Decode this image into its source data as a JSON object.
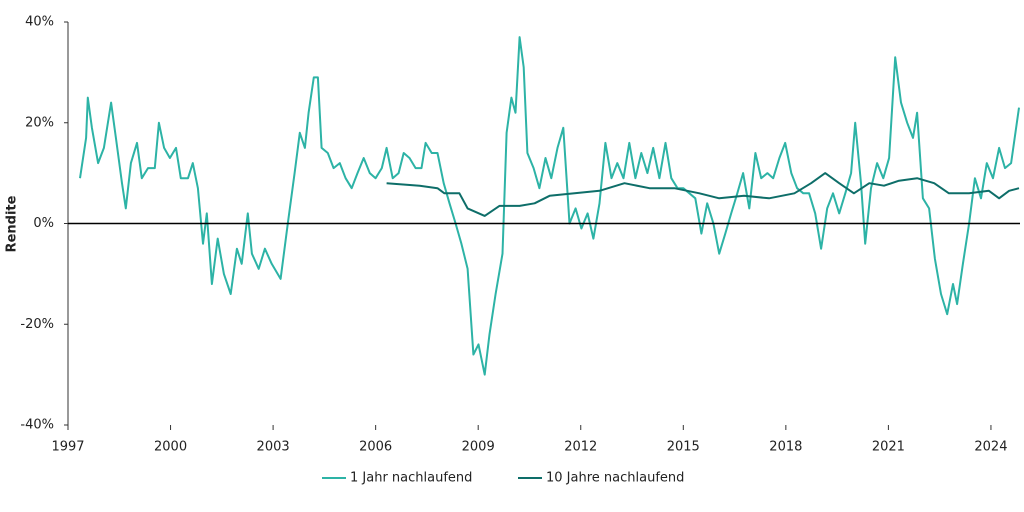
{
  "chart_data": {
    "type": "line",
    "y_label": "Rendite",
    "xlim": [
      1997,
      2024.85
    ],
    "xticks": [
      1997,
      2000,
      2003,
      2006,
      2009,
      2012,
      2015,
      2018,
      2021,
      2024
    ],
    "ylim": [
      -40,
      40
    ],
    "yticks": [
      {
        "value": 40,
        "label": "40%"
      },
      {
        "value": 20,
        "label": "20%"
      },
      {
        "value": 0,
        "label": "0%"
      },
      {
        "value": -20,
        "label": "-20%"
      },
      {
        "value": -40,
        "label": "-40%"
      }
    ],
    "legend": "bottom",
    "series": [
      {
        "name": "1 Jahr nachlaufend",
        "color": "#2db3a6",
        "x": [
          1997.35,
          1997.53,
          1997.58,
          1997.7,
          1997.88,
          1998.05,
          1998.26,
          1998.4,
          1998.58,
          1998.69,
          1998.84,
          1999.02,
          1999.16,
          1999.34,
          1999.54,
          1999.66,
          1999.81,
          1999.98,
          2000.16,
          2000.3,
          2000.51,
          2000.65,
          2000.8,
          2000.95,
          2001.06,
          2001.21,
          2001.38,
          2001.56,
          2001.76,
          2001.94,
          2002.08,
          2002.26,
          2002.38,
          2002.58,
          2002.76,
          2002.96,
          2003.22,
          2003.43,
          2003.63,
          2003.78,
          2003.93,
          2004.04,
          2004.19,
          2004.31,
          2004.42,
          2004.6,
          2004.77,
          2004.95,
          2005.12,
          2005.3,
          2005.47,
          2005.65,
          2005.83,
          2006.0,
          2006.18,
          2006.32,
          2006.5,
          2006.67,
          2006.82,
          2006.99,
          2007.17,
          2007.34,
          2007.46,
          2007.64,
          2007.81,
          2007.99,
          2008.16,
          2008.34,
          2008.51,
          2008.69,
          2008.86,
          2009.01,
          2009.19,
          2009.33,
          2009.51,
          2009.71,
          2009.83,
          2009.97,
          2010.09,
          2010.21,
          2010.33,
          2010.44,
          2010.62,
          2010.79,
          2010.97,
          2011.14,
          2011.32,
          2011.49,
          2011.67,
          2011.85,
          2012.02,
          2012.2,
          2012.37,
          2012.55,
          2012.72,
          2012.9,
          2013.07,
          2013.25,
          2013.42,
          2013.6,
          2013.77,
          2013.95,
          2014.12,
          2014.3,
          2014.48,
          2014.65,
          2014.83,
          2015.0,
          2015.18,
          2015.35,
          2015.53,
          2015.7,
          2015.88,
          2016.05,
          2016.23,
          2016.4,
          2016.58,
          2016.75,
          2016.93,
          2017.11,
          2017.28,
          2017.46,
          2017.63,
          2017.81,
          2017.98,
          2018.16,
          2018.33,
          2018.51,
          2018.68,
          2018.86,
          2019.03,
          2019.21,
          2019.38,
          2019.56,
          2019.74,
          2019.91,
          2020.03,
          2020.2,
          2020.32,
          2020.49,
          2020.67,
          2020.85,
          2021.02,
          2021.2,
          2021.37,
          2021.55,
          2021.72,
          2021.84,
          2022.01,
          2022.19,
          2022.36,
          2022.54,
          2022.72,
          2022.89,
          2023.01,
          2023.18,
          2023.36,
          2023.53,
          2023.71,
          2023.88,
          2024.06,
          2024.24,
          2024.41,
          2024.59,
          2024.82
        ],
        "values": [
          9,
          17,
          25,
          19,
          12,
          15,
          24,
          17,
          8,
          3,
          12,
          16,
          9,
          11,
          11,
          20,
          15,
          13,
          15,
          9,
          9,
          12,
          7,
          -4,
          2,
          -12,
          -3,
          -10,
          -14,
          -5,
          -8,
          2,
          -6,
          -9,
          -5,
          -8,
          -11,
          0,
          10,
          18,
          15,
          22,
          29,
          29,
          15,
          14,
          11,
          12,
          9,
          7,
          10,
          13,
          10,
          9,
          11,
          15,
          9,
          10,
          14,
          13,
          11,
          11,
          16,
          14,
          14,
          8,
          4,
          0,
          -4,
          -9,
          -26,
          -24,
          -30,
          -22,
          -14,
          -6,
          18,
          25,
          22,
          37,
          31,
          14,
          11,
          7,
          13,
          9,
          15,
          19,
          0,
          3,
          -1,
          2,
          -3,
          4,
          16,
          9,
          12,
          9,
          16,
          9,
          14,
          10,
          15,
          9,
          16,
          9,
          7,
          7,
          6,
          5,
          -2,
          4,
          0,
          -6,
          -2,
          2,
          6,
          10,
          3,
          14,
          9,
          10,
          9,
          13,
          16,
          10,
          7,
          6,
          6,
          2,
          -5,
          3,
          6,
          2,
          6,
          10,
          20,
          8,
          -4,
          7,
          12,
          9,
          13,
          33,
          24,
          20,
          17,
          22,
          5,
          3,
          -7,
          -14,
          -18,
          -12,
          -16,
          -8,
          0,
          9,
          5,
          12,
          9,
          15,
          11,
          12,
          23
        ]
      },
      {
        "name": "10 Jahre nachlaufend",
        "color": "#0e6e69",
        "x": [
          2006.32,
          2007.29,
          2007.81,
          2008.01,
          2008.45,
          2008.69,
          2009.19,
          2009.62,
          2010.21,
          2010.65,
          2011.09,
          2011.82,
          2012.55,
          2013.28,
          2014.01,
          2014.74,
          2015.47,
          2016.05,
          2016.78,
          2017.51,
          2018.25,
          2018.74,
          2019.15,
          2019.56,
          2019.99,
          2020.44,
          2020.87,
          2021.31,
          2021.84,
          2022.34,
          2022.77,
          2023.36,
          2023.94,
          2024.24,
          2024.53,
          2024.82
        ],
        "values": [
          8,
          7.5,
          7,
          6,
          6,
          3,
          1.5,
          3.5,
          3.5,
          4,
          5.5,
          6,
          6.5,
          8,
          7,
          7,
          6,
          5,
          5.5,
          5,
          6,
          8,
          10,
          8,
          6,
          8,
          7.5,
          8.5,
          9,
          8,
          6,
          6,
          6.5,
          5,
          6.5,
          7
        ]
      }
    ]
  }
}
